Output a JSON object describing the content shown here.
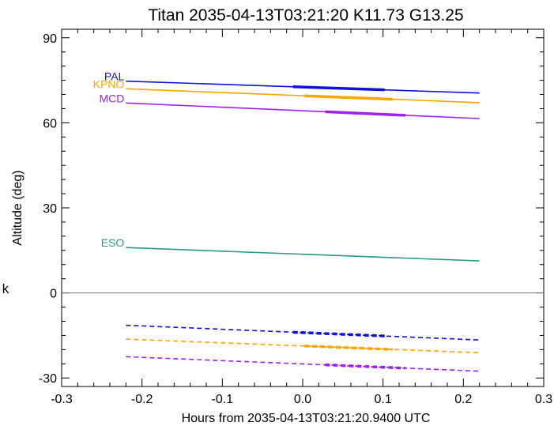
{
  "chart_data": {
    "type": "line",
    "title": "Titan 2035-04-13T03:21:20  K11.73  G13.25",
    "xlabel": "Hours from 2035-04-13T03:21:20.9400 UTC",
    "ylabel": "Altitude (deg)",
    "side_label": "k",
    "xlim": [
      -0.3,
      0.3
    ],
    "ylim": [
      -33,
      93
    ],
    "x_ticks": [
      -0.3,
      -0.2,
      -0.1,
      0.0,
      0.1,
      0.2,
      0.3
    ],
    "x_tick_labels": [
      "-0.3",
      "-0.2",
      "-0.1",
      "0.0",
      "0.1",
      "0.2",
      "0.3"
    ],
    "y_ticks": [
      -30,
      0,
      30,
      60,
      90
    ],
    "y_tick_labels": [
      "-30",
      "0",
      "30",
      "60",
      "90"
    ],
    "zero_line": 0,
    "colors": {
      "PAL": "#1010dd",
      "KPNO": "#ffa500",
      "MCD": "#a020f0",
      "ESO": "#26998a",
      "axis": "#000000",
      "zero_line": "#777777"
    },
    "series": [
      {
        "name": "PAL",
        "style": "solid",
        "x": [
          -0.22,
          0.22
        ],
        "y": [
          74.7,
          70.5
        ],
        "highlight": [
          -0.012,
          0.102
        ]
      },
      {
        "name": "KPNO",
        "style": "solid",
        "x": [
          -0.22,
          0.22
        ],
        "y": [
          72.0,
          67.1
        ],
        "highlight": [
          0.002,
          0.112
        ]
      },
      {
        "name": "MCD",
        "style": "solid",
        "x": [
          -0.22,
          0.22
        ],
        "y": [
          67.0,
          61.5
        ],
        "highlight": [
          0.028,
          0.128
        ]
      },
      {
        "name": "ESO",
        "style": "solid",
        "x": [
          -0.22,
          0.22
        ],
        "y": [
          16.0,
          11.3
        ],
        "highlight": null
      },
      {
        "name": "",
        "style": "dashed",
        "color_of": "PAL",
        "x": [
          -0.22,
          0.22
        ],
        "y": [
          -11.4,
          -16.6
        ],
        "highlight": [
          -0.012,
          0.102
        ]
      },
      {
        "name": "",
        "style": "dashed",
        "color_of": "KPNO",
        "x": [
          -0.22,
          0.22
        ],
        "y": [
          -16.3,
          -21.1
        ],
        "highlight": [
          0.002,
          0.112
        ]
      },
      {
        "name": "",
        "style": "dashed",
        "color_of": "MCD",
        "x": [
          -0.22,
          0.22
        ],
        "y": [
          -22.5,
          -27.6
        ],
        "highlight": [
          0.028,
          0.128
        ]
      }
    ]
  }
}
